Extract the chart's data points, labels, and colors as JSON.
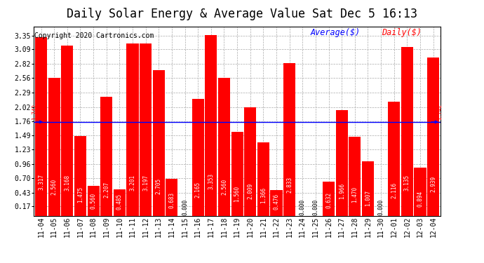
{
  "title": "Daily Solar Energy & Average Value Sat Dec 5 16:13",
  "copyright": "Copyright 2020 Cartronics.com",
  "categories": [
    "11-04",
    "11-05",
    "11-06",
    "11-07",
    "11-08",
    "11-09",
    "11-10",
    "11-11",
    "11-12",
    "11-13",
    "11-14",
    "11-15",
    "11-16",
    "11-17",
    "11-18",
    "11-19",
    "11-20",
    "11-21",
    "11-22",
    "11-23",
    "11-24",
    "11-25",
    "11-26",
    "11-27",
    "11-28",
    "11-29",
    "11-30",
    "12-01",
    "12-02",
    "12-03",
    "12-04"
  ],
  "values": [
    3.317,
    2.56,
    3.168,
    1.475,
    0.56,
    2.207,
    0.485,
    3.201,
    3.197,
    2.705,
    0.683,
    0.0,
    2.165,
    3.353,
    2.56,
    1.56,
    2.009,
    1.366,
    0.476,
    2.833,
    0.0,
    0.0,
    0.632,
    1.966,
    1.47,
    1.007,
    0.0,
    2.116,
    3.135,
    0.894,
    2.939
  ],
  "average": 1.742,
  "bar_color": "#ff0000",
  "avg_line_color": "#0000ff",
  "ylim_min": 0.0,
  "ylim_max": 3.52,
  "yticks": [
    0.17,
    0.43,
    0.7,
    0.96,
    1.23,
    1.49,
    1.76,
    2.02,
    2.29,
    2.56,
    2.82,
    3.09,
    3.35
  ],
  "background_color": "#ffffff",
  "grid_color": "#aaaaaa",
  "avg_label": "1.742",
  "legend_avg_color": "#0000ff",
  "legend_daily_color": "#ff0000",
  "title_fontsize": 12,
  "copyright_fontsize": 7,
  "bar_label_fontsize": 5.5,
  "tick_fontsize": 7,
  "legend_fontsize": 8.5
}
